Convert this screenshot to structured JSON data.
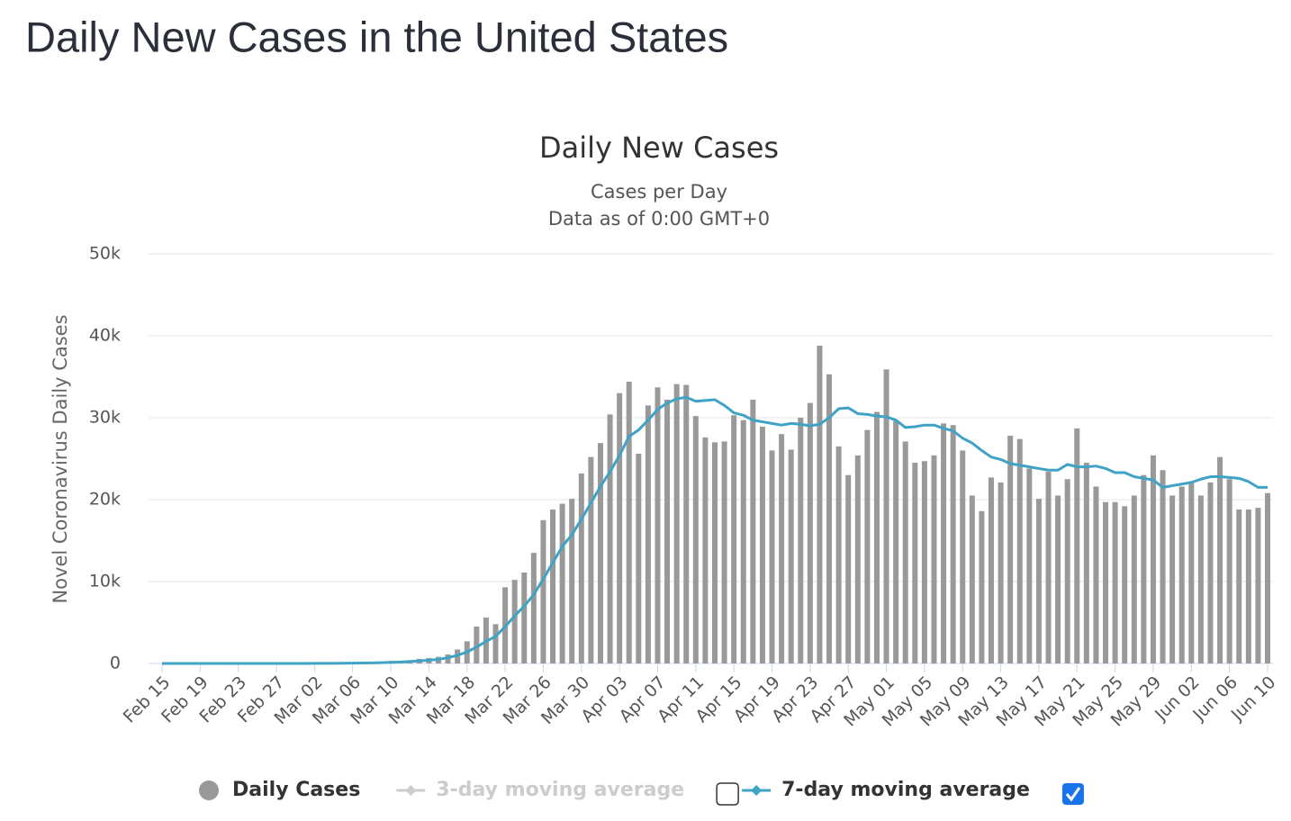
{
  "page_title": "Daily New Cases in the United States",
  "chart_data": {
    "type": "bar",
    "title": "Daily New Cases",
    "subtitle": [
      "Cases per Day",
      "Data as of 0:00 GMT+0"
    ],
    "y_label": "Novel Coronavirus Daily Cases",
    "categories": [
      "Feb 15",
      null,
      null,
      null,
      "Feb 19",
      null,
      null,
      null,
      "Feb 23",
      null,
      null,
      null,
      "Feb 27",
      null,
      null,
      null,
      "Mar 02",
      null,
      null,
      null,
      "Mar 06",
      null,
      null,
      null,
      "Mar 10",
      null,
      null,
      null,
      "Mar 14",
      null,
      null,
      null,
      "Mar 18",
      null,
      null,
      null,
      "Mar 22",
      null,
      null,
      null,
      "Mar 26",
      null,
      null,
      null,
      "Mar 30",
      null,
      null,
      null,
      "Apr 03",
      null,
      null,
      null,
      "Apr 07",
      null,
      null,
      null,
      "Apr 11",
      null,
      null,
      null,
      "Apr 15",
      null,
      null,
      null,
      "Apr 19",
      null,
      null,
      null,
      "Apr 23",
      null,
      null,
      null,
      "Apr 27",
      null,
      null,
      null,
      "May 01",
      null,
      null,
      null,
      "May 05",
      null,
      null,
      null,
      "May 09",
      null,
      null,
      null,
      "May 13",
      null,
      null,
      null,
      "May 17",
      null,
      null,
      null,
      "May 21",
      null,
      null,
      null,
      "May 25",
      null,
      null,
      null,
      "May 29",
      null,
      null,
      null,
      "Jun 02",
      null,
      null,
      null,
      "Jun 06",
      null,
      null,
      null,
      "Jun 10"
    ],
    "series": [
      {
        "name": "Daily Cases",
        "type": "bar",
        "color": "#999999",
        "visible": true,
        "values": [
          0,
          0,
          1,
          0,
          0,
          0,
          0,
          0,
          0,
          1,
          0,
          3,
          0,
          1,
          4,
          20,
          20,
          30,
          30,
          70,
          70,
          120,
          110,
          170,
          300,
          270,
          400,
          560,
          670,
          800,
          1100,
          1700,
          2700,
          4500,
          5600,
          4800,
          9300,
          10200,
          11100,
          13500,
          17500,
          18800,
          19500,
          20100,
          23200,
          25200,
          26900,
          30400,
          33000,
          34400,
          25600,
          31500,
          33700,
          32200,
          34100,
          34000,
          30200,
          27600,
          27000,
          27100,
          30300,
          29700,
          32200,
          28900,
          26000,
          28000,
          26100,
          30000,
          31800,
          38800,
          35300,
          26500,
          23000,
          25400,
          28500,
          30700,
          35900,
          29600,
          27100,
          24500,
          24700,
          25400,
          29300,
          29100,
          26000,
          20500,
          18600,
          22700,
          22100,
          27800,
          27400,
          23800,
          20100,
          23400,
          20500,
          22500,
          28700,
          24500,
          21600,
          19700,
          19700,
          19200,
          20500,
          23000,
          25400,
          23600,
          20500,
          21600,
          22100,
          20500,
          22100,
          25200,
          22500,
          18800,
          18800,
          19000,
          20800
        ]
      },
      {
        "name": "3-day moving average",
        "type": "line",
        "color": "#cccccc",
        "visible": false
      },
      {
        "name": "7-day moving average",
        "type": "line",
        "color": "#3fa3c6",
        "visible": true,
        "values": [
          0,
          0,
          0,
          0,
          0,
          0,
          0,
          0,
          0,
          0,
          0,
          0,
          0,
          0,
          0,
          5,
          8,
          12,
          17,
          25,
          35,
          50,
          70,
          100,
          140,
          180,
          240,
          320,
          400,
          500,
          700,
          1000,
          1400,
          2000,
          2700,
          3300,
          4500,
          5800,
          7000,
          8400,
          10300,
          12300,
          14300,
          15700,
          17600,
          19600,
          21600,
          23400,
          25400,
          27700,
          28500,
          29700,
          31000,
          31800,
          32300,
          32500,
          32000,
          32100,
          32200,
          31500,
          30600,
          30300,
          29700,
          29500,
          29300,
          29100,
          29300,
          29200,
          29000,
          29200,
          30000,
          31100,
          31200,
          30500,
          30400,
          30200,
          30100,
          29700,
          28800,
          28900,
          29100,
          29100,
          28700,
          28400,
          27500,
          26900,
          26000,
          25200,
          24900,
          24400,
          24200,
          24000,
          23800,
          23600,
          23600,
          24300,
          24000,
          24000,
          24100,
          23800,
          23300,
          23300,
          22800,
          22600,
          22400,
          21500,
          21700,
          21900,
          22100,
          22500,
          22800,
          22800,
          22700,
          22600,
          22200,
          21500,
          21500
        ]
      }
    ],
    "ylim": [
      0,
      50000
    ],
    "yticks": [
      0,
      {
        "value": 10000,
        "label": "10k"
      },
      {
        "value": 20000,
        "label": "20k"
      },
      {
        "value": 30000,
        "label": "30k"
      },
      {
        "value": 40000,
        "label": "40k"
      },
      {
        "value": 50000,
        "label": "50k"
      }
    ],
    "grid": true
  }
}
